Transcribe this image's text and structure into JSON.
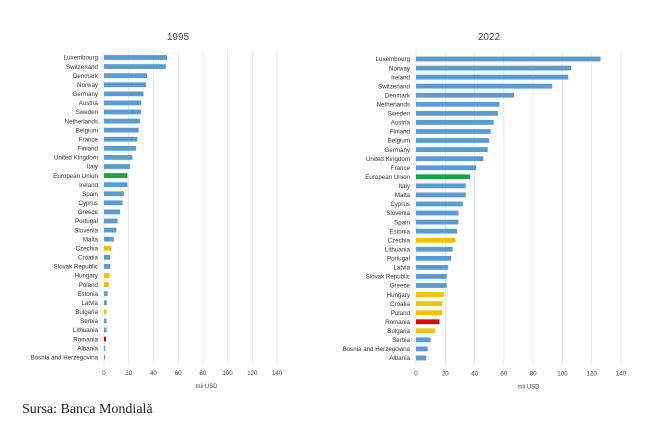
{
  "source_note": "Sursa: Banca Mondială",
  "colors": {
    "default": "#5b9bd5",
    "eu": "#1aa347",
    "highlight": "#f2c100",
    "romania": "#e00000",
    "grid": "#d9d9d9"
  },
  "chart_data": [
    {
      "type": "bar",
      "orientation": "horizontal",
      "title": "1995",
      "xlabel": "mii USD",
      "xlim": [
        0,
        140
      ],
      "xticks": [
        0,
        20,
        40,
        60,
        80,
        100,
        120,
        140
      ],
      "grid": true,
      "categories": [
        "Luxembourg",
        "Switzerland",
        "Denmark",
        "Norway",
        "Germany",
        "Austria",
        "Sweden",
        "Netherlands",
        "Belgium",
        "France",
        "Finland",
        "United Kingdom",
        "Italy",
        "European Union",
        "Ireland",
        "Spain",
        "Cyprus",
        "Greece",
        "Portugal",
        "Slovenia",
        "Malta",
        "Czechia",
        "Croatia",
        "Slovak Republic",
        "Hungary",
        "Poland",
        "Estonia",
        "Latvia",
        "Bulgaria",
        "Serbia",
        "Lithuania",
        "Romania",
        "Albania",
        "Bosnia and Herzegovina"
      ],
      "values": [
        51,
        50,
        35,
        34,
        32,
        30,
        30,
        29,
        28,
        27,
        26,
        23,
        21,
        19,
        19,
        16,
        15,
        13,
        11,
        10,
        8,
        6,
        5,
        5,
        4.5,
        4,
        3,
        2.3,
        2,
        2,
        2,
        1.6,
        0.8,
        0.4
      ],
      "categories_color": {
        "European Union": "eu",
        "Czechia": "highlight",
        "Hungary": "highlight",
        "Poland": "highlight",
        "Bulgaria": "highlight",
        "Romania": "romania"
      }
    },
    {
      "type": "bar",
      "orientation": "horizontal",
      "title": "2022",
      "xlabel": "mii USD",
      "xlim": [
        0,
        140
      ],
      "xticks": [
        0,
        20,
        40,
        60,
        80,
        100,
        120,
        140
      ],
      "grid": true,
      "categories": [
        "Luxembourg",
        "Norway",
        "Ireland",
        "Switzerland",
        "Denmark",
        "Netherlands",
        "Sweden",
        "Austria",
        "Finland",
        "Belgium",
        "Germany",
        "United Kingdom",
        "France",
        "European Union",
        "Italy",
        "Malta",
        "Cyprus",
        "Slovenia",
        "Spain",
        "Estonia",
        "Czechia",
        "Lithuania",
        "Portugal",
        "Latvia",
        "Slovak Republic",
        "Greece",
        "Hungary",
        "Croatia",
        "Poland",
        "Romania",
        "Bulgaria",
        "Serbia",
        "Bosnia and Herzegovina",
        "Albania"
      ],
      "values": [
        126,
        106,
        104,
        93,
        67,
        57,
        56,
        53,
        51,
        50,
        49,
        46,
        41,
        37,
        34,
        34,
        32,
        29,
        29,
        28,
        27,
        25,
        24,
        22,
        21,
        21,
        19,
        18,
        18,
        16,
        13,
        10,
        8,
        7
      ],
      "categories_color": {
        "European Union": "eu",
        "Czechia": "highlight",
        "Hungary": "highlight",
        "Croatia": "highlight",
        "Poland": "highlight",
        "Bulgaria": "highlight",
        "Romania": "romania"
      }
    }
  ]
}
